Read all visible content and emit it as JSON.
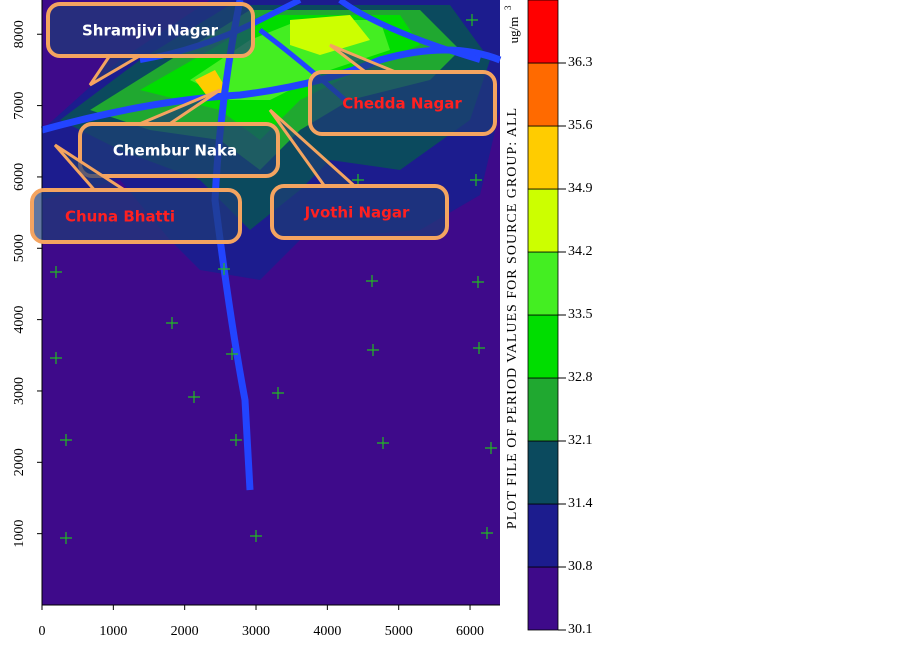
{
  "axes": {
    "xlim": [
      0,
      6420
    ],
    "ylim": [
      0,
      8480
    ],
    "xticks": [
      0,
      1000,
      2000,
      3000,
      4000,
      5000,
      6000
    ],
    "yticks": [
      1000,
      2000,
      3000,
      4000,
      5000,
      6000,
      7000,
      8000
    ]
  },
  "legend": {
    "title": "PLOT FILE OF PERIOD VALUES FOR SOURCE GROUP: ALL",
    "unit": "ug/m",
    "unit_sup": "3",
    "levels": [
      30.1,
      30.8,
      31.4,
      32.1,
      32.8,
      33.5,
      34.2,
      34.9,
      35.6,
      36.3
    ],
    "colors": [
      "#3e0a8a",
      "#1c1c8e",
      "#0b4a5e",
      "#20a830",
      "#00dd00",
      "#44ee22",
      "#ccff00",
      "#ffcc00",
      "#ff6a00",
      "#ff0000"
    ]
  },
  "labels": [
    {
      "text": "Shramjivi Nagar",
      "color": "#ffffff"
    },
    {
      "text": "Chedda Nagar",
      "color": "#ff2020"
    },
    {
      "text": "Chembur Naka",
      "color": "#ffffff"
    },
    {
      "text": "Chuna Bhatti",
      "color": "#ff2020"
    },
    {
      "text": "Jvothi Nagar",
      "color": "#ff2020"
    }
  ]
}
